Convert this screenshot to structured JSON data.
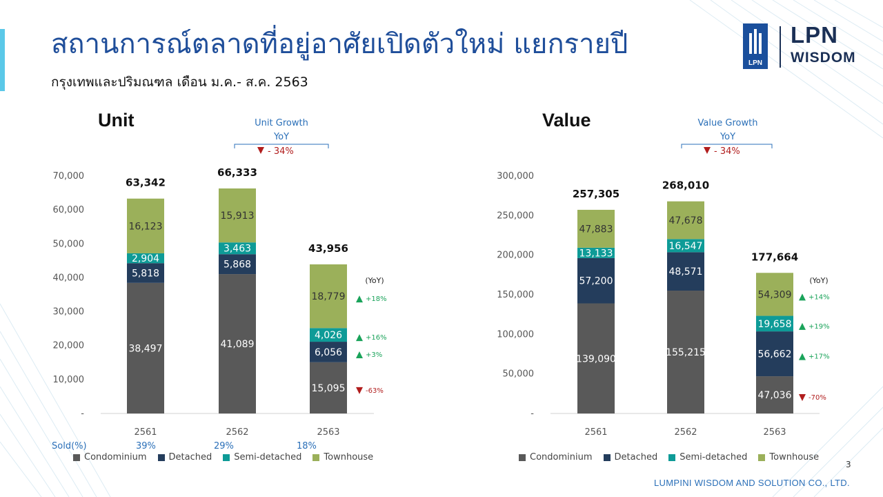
{
  "slide": {
    "title": "สถานการณ์ตลาดที่อยู่อาศัยเปิดตัวใหม่ แยกรายปี",
    "subtitle": "กรุงเทพและปริมณฑล เดือน ม.ค.- ส.ค. 2563",
    "page_number": "3",
    "footer": "LUMPINI WISDOM AND SOLUTION CO., LTD.",
    "logo": {
      "line1": "LPN",
      "line2": "WISDOM",
      "badge": "LPN"
    }
  },
  "colors": {
    "Condominium": "#595959",
    "Detached": "#243d5c",
    "Semi-detached": "#0e9b97",
    "Townhouse": "#9bb05a",
    "up": "#1aa35a",
    "down": "#b11d1d",
    "title": "#1f4e9a",
    "growth_text": "#2a6fb8"
  },
  "sold": {
    "label": "Sold(%)",
    "values": [
      "39%",
      "29%",
      "18%"
    ]
  },
  "chart_data": [
    {
      "type": "bar",
      "stacked": true,
      "title": "Unit",
      "categories": [
        "2561",
        "2562",
        "2563"
      ],
      "series": [
        {
          "name": "Condominium",
          "values": [
            38497,
            41089,
            15095
          ],
          "labels": [
            "38,497",
            "41,089",
            "15,095"
          ]
        },
        {
          "name": "Detached",
          "values": [
            5818,
            5868,
            6056
          ],
          "labels": [
            "5,818",
            "5,868",
            "6,056"
          ]
        },
        {
          "name": "Semi-detached",
          "values": [
            2904,
            3463,
            4026
          ],
          "labels": [
            "2,904",
            "3,463",
            "4,026"
          ]
        },
        {
          "name": "Townhouse",
          "values": [
            16123,
            15913,
            18779
          ],
          "labels": [
            "16,123",
            "15,913",
            "18,779"
          ]
        }
      ],
      "totals": [
        63342,
        66333,
        43956
      ],
      "total_labels": [
        "63,342",
        "66,333",
        "43,956"
      ],
      "ylim": [
        0,
        70000
      ],
      "yticks": [
        0,
        10000,
        20000,
        30000,
        40000,
        50000,
        60000,
        70000
      ],
      "ytick_labels": [
        "-",
        "10,000",
        "20,000",
        "30,000",
        "40,000",
        "50,000",
        "60,000",
        "70,000"
      ],
      "growth": {
        "line1": "Unit Growth",
        "line2": "YoY",
        "direction": "down",
        "value": "- 34%"
      },
      "yoy": {
        "label": "(YoY)",
        "items": [
          {
            "series": "Townhouse",
            "direction": "up",
            "text": "+18%"
          },
          {
            "series": "Semi-detached",
            "direction": "up",
            "text": "+16%"
          },
          {
            "series": "Detached",
            "direction": "up",
            "text": "+3%"
          },
          {
            "series": "Condominium",
            "direction": "down",
            "text": "-63%"
          }
        ]
      },
      "legend": [
        "Condominium",
        "Detached",
        "Semi-detached",
        "Townhouse"
      ]
    },
    {
      "type": "bar",
      "stacked": true,
      "title": "Value",
      "categories": [
        "2561",
        "2562",
        "2563"
      ],
      "series": [
        {
          "name": "Condominium",
          "values": [
            139090,
            155215,
            47036
          ],
          "labels": [
            "139,090",
            "155,215",
            "47,036"
          ]
        },
        {
          "name": "Detached",
          "values": [
            57200,
            48571,
            56662
          ],
          "labels": [
            "57,200",
            "48,571",
            "56,662"
          ]
        },
        {
          "name": "Semi-detached",
          "values": [
            13133,
            16547,
            19658
          ],
          "labels": [
            "13,133",
            "16,547",
            "19,658"
          ]
        },
        {
          "name": "Townhouse",
          "values": [
            47883,
            47678,
            54309
          ],
          "labels": [
            "47,883",
            "47,678",
            "54,309"
          ]
        }
      ],
      "totals": [
        257305,
        268010,
        177664
      ],
      "total_labels": [
        "257,305",
        "268,010",
        "177,664"
      ],
      "ylim": [
        0,
        300000
      ],
      "yticks": [
        0,
        50000,
        100000,
        150000,
        200000,
        250000,
        300000
      ],
      "ytick_labels": [
        "-",
        "50,000",
        "100,000",
        "150,000",
        "200,000",
        "250,000",
        "300,000"
      ],
      "growth": {
        "line1": "Value Growth",
        "line2": "YoY",
        "direction": "down",
        "value": "- 34%"
      },
      "yoy": {
        "label": "(YoY)",
        "items": [
          {
            "series": "Townhouse",
            "direction": "up",
            "text": "+14%"
          },
          {
            "series": "Semi-detached",
            "direction": "up",
            "text": "+19%"
          },
          {
            "series": "Detached",
            "direction": "up",
            "text": "+17%"
          },
          {
            "series": "Condominium",
            "direction": "down",
            "text": "-70%"
          }
        ]
      },
      "legend": [
        "Condominium",
        "Detached",
        "Semi-detached",
        "Townhouse"
      ]
    }
  ]
}
